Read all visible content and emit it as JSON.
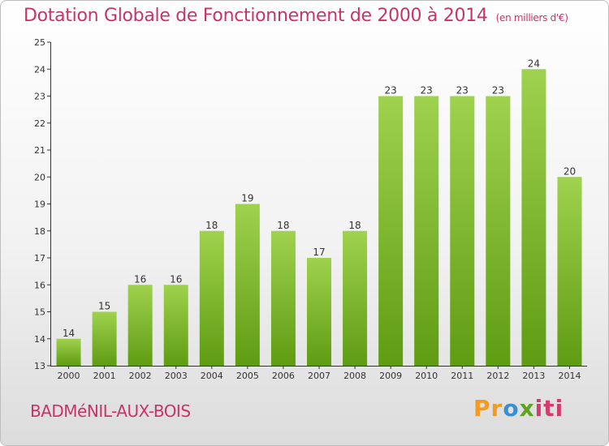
{
  "header": {
    "title": "Dotation Globale de Fonctionnement de 2000 à 2014",
    "unit": "(en milliers d'€)"
  },
  "footer": {
    "commune": "BADMéNIL-AUX-BOIS",
    "logo": "Proxiti"
  },
  "colors": {
    "title": "#c8336a",
    "bar_top": "#9fd24e",
    "bar_bottom": "#5f9c12"
  },
  "chart_data": {
    "type": "bar",
    "categories": [
      "2000",
      "2001",
      "2002",
      "2003",
      "2004",
      "2005",
      "2006",
      "2007",
      "2008",
      "2009",
      "2010",
      "2011",
      "2012",
      "2013",
      "2014"
    ],
    "values": [
      14,
      15,
      16,
      16,
      18,
      19,
      18,
      17,
      18,
      23,
      23,
      23,
      23,
      24,
      20
    ],
    "data_labels": [
      "14",
      "15",
      "16",
      "16",
      "18",
      "19",
      "18",
      "17",
      "18",
      "23",
      "23",
      "23",
      "23",
      "24",
      "20"
    ],
    "y_ticks": [
      "13",
      "14",
      "15",
      "16",
      "17",
      "18",
      "19",
      "20",
      "21",
      "22",
      "23",
      "24",
      "25"
    ],
    "ylim": [
      13,
      25
    ],
    "title": "Dotation Globale de Fonctionnement de 2000 à 2014",
    "xlabel": "",
    "ylabel": "",
    "grid": false,
    "legend": "none"
  }
}
